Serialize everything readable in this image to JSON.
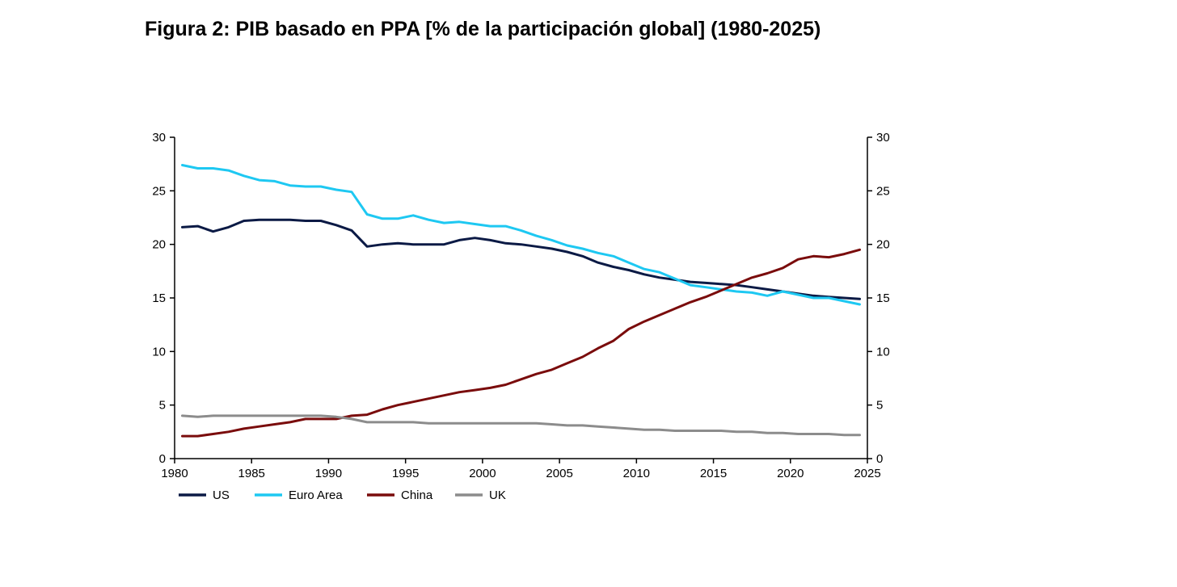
{
  "title": "Figura 2: PIB basado en PPA [% de la participación global] (1980-2025)",
  "chart_data": {
    "type": "line",
    "title": "Figura 2: PIB basado en PPA [% de la participación global] (1980-2025)",
    "xlim": [
      1980,
      2025
    ],
    "ylim": [
      0,
      30
    ],
    "x_ticks": [
      1980,
      1985,
      1990,
      1995,
      2000,
      2005,
      2010,
      2015,
      2020,
      2025
    ],
    "y_ticks": [
      0,
      5,
      10,
      15,
      20,
      25,
      30
    ],
    "secondary_y_axis": true,
    "grid": false,
    "legend_position": "bottom-left",
    "x": [
      1980,
      1981,
      1982,
      1983,
      1984,
      1985,
      1986,
      1987,
      1988,
      1989,
      1990,
      1991,
      1992,
      1993,
      1994,
      1995,
      1996,
      1997,
      1998,
      1999,
      2000,
      2001,
      2002,
      2003,
      2004,
      2005,
      2006,
      2007,
      2008,
      2009,
      2010,
      2011,
      2012,
      2013,
      2014,
      2015,
      2016,
      2017,
      2018,
      2019,
      2020,
      2021,
      2022,
      2023,
      2024
    ],
    "series": [
      {
        "name": "US",
        "color": "#0b1a45",
        "values": [
          21.6,
          21.7,
          21.2,
          21.6,
          22.2,
          22.3,
          22.3,
          22.3,
          22.2,
          22.2,
          21.8,
          21.3,
          19.8,
          20.0,
          20.1,
          20.0,
          20.0,
          20.0,
          20.4,
          20.6,
          20.4,
          20.1,
          20.0,
          19.8,
          19.6,
          19.3,
          18.9,
          18.3,
          17.9,
          17.6,
          17.2,
          16.9,
          16.7,
          16.5,
          16.4,
          16.3,
          16.2,
          16.0,
          15.8,
          15.6,
          15.4,
          15.2,
          15.1,
          15.0,
          14.9
        ]
      },
      {
        "name": "Euro Area",
        "color": "#1ec8f2",
        "values": [
          27.4,
          27.1,
          27.1,
          26.9,
          26.4,
          26.0,
          25.9,
          25.5,
          25.4,
          25.4,
          25.1,
          24.9,
          22.8,
          22.4,
          22.4,
          22.7,
          22.3,
          22.0,
          22.1,
          21.9,
          21.7,
          21.7,
          21.3,
          20.8,
          20.4,
          19.9,
          19.6,
          19.2,
          18.9,
          18.3,
          17.7,
          17.4,
          16.8,
          16.2,
          16.0,
          15.8,
          15.6,
          15.5,
          15.2,
          15.6,
          15.3,
          15.0,
          15.0,
          14.7,
          14.4
        ]
      },
      {
        "name": "China",
        "color": "#7a0c0c",
        "values": [
          2.1,
          2.1,
          2.3,
          2.5,
          2.8,
          3.0,
          3.2,
          3.4,
          3.7,
          3.7,
          3.7,
          4.0,
          4.1,
          4.6,
          5.0,
          5.3,
          5.6,
          5.9,
          6.2,
          6.4,
          6.6,
          6.9,
          7.4,
          7.9,
          8.3,
          8.9,
          9.5,
          10.3,
          11.0,
          12.1,
          12.8,
          13.4,
          14.0,
          14.6,
          15.1,
          15.7,
          16.3,
          16.9,
          17.3,
          17.8,
          18.6,
          18.9,
          18.8,
          19.1,
          19.5
        ]
      },
      {
        "name": "UK",
        "color": "#8c8c8c",
        "values": [
          4.0,
          3.9,
          4.0,
          4.0,
          4.0,
          4.0,
          4.0,
          4.0,
          4.0,
          4.0,
          3.9,
          3.7,
          3.4,
          3.4,
          3.4,
          3.4,
          3.3,
          3.3,
          3.3,
          3.3,
          3.3,
          3.3,
          3.3,
          3.3,
          3.2,
          3.1,
          3.1,
          3.0,
          2.9,
          2.8,
          2.7,
          2.7,
          2.6,
          2.6,
          2.6,
          2.6,
          2.5,
          2.5,
          2.4,
          2.4,
          2.3,
          2.3,
          2.3,
          2.2,
          2.2
        ]
      }
    ]
  }
}
